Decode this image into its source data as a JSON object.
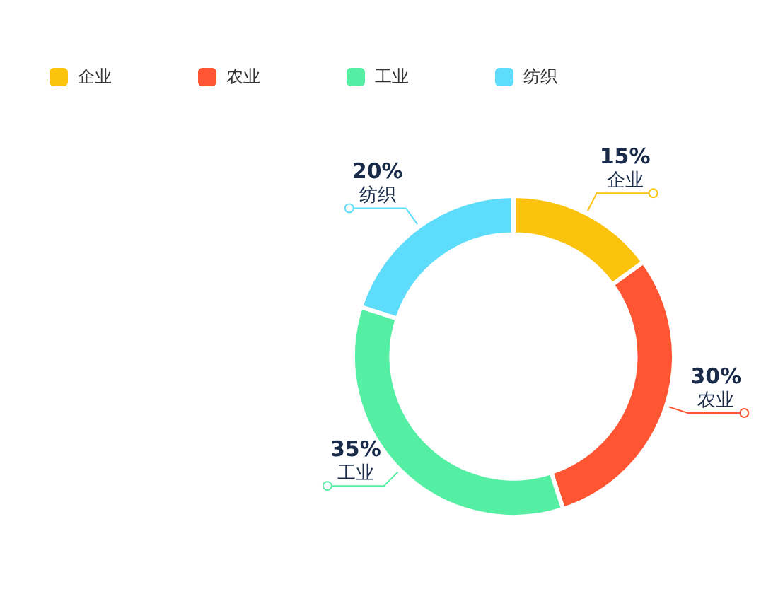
{
  "chart_data": {
    "type": "donut",
    "categories": [
      "企业",
      "农业",
      "工业",
      "纺织"
    ],
    "values": [
      15,
      30,
      35,
      20
    ],
    "colors": [
      "#fcc30c",
      "#ff5533",
      "#55efa4",
      "#5ddcfc"
    ],
    "value_labels": [
      "15%",
      "30%",
      "35%",
      "20%"
    ],
    "legend": "top left"
  }
}
